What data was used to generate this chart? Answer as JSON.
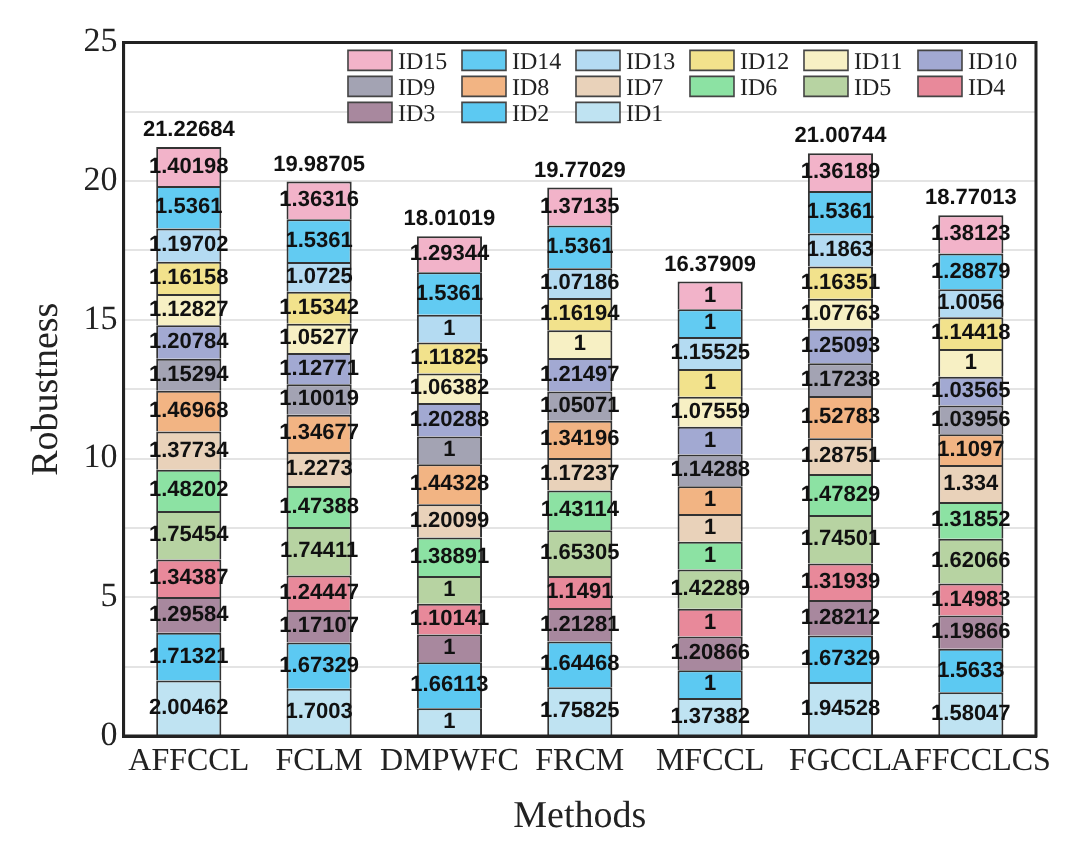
{
  "chart_data": {
    "type": "bar",
    "stacked": true,
    "xlabel": "Methods",
    "ylabel": "Robustness",
    "categories": [
      "AFFCCL",
      "FCLM",
      "DMPWFC",
      "FRCM",
      "MFCCL",
      "FGCCL",
      "AFFCCLCS"
    ],
    "ylim": [
      0,
      25
    ],
    "yticks": [
      0,
      {
        "value": 2.5,
        "label": null
      },
      5,
      {
        "value": 7.5,
        "label": null
      },
      10,
      {
        "value": 12.5,
        "label": null
      },
      15,
      {
        "value": 17.5,
        "label": null
      },
      20,
      {
        "value": 22.5,
        "label": null
      },
      25
    ],
    "grid": "y",
    "legend": "top right",
    "data_labels": true,
    "totals": [
      "21.22684",
      "19.98705",
      "18.01019",
      "19.77029",
      "16.37909",
      "21.00744",
      "18.77013"
    ],
    "series": [
      {
        "name": "ID1",
        "color": "#bfe3f2",
        "values": [
          2.00462,
          1.7003,
          1,
          1.75825,
          1.37382,
          1.94528,
          1.58047
        ]
      },
      {
        "name": "ID2",
        "color": "#5cc9f2",
        "values": [
          1.71321,
          1.67329,
          1.66113,
          1.64468,
          1,
          1.67329,
          1.5633
        ]
      },
      {
        "name": "ID3",
        "color": "#a8889e",
        "values": [
          1.29584,
          1.17107,
          1,
          1.21281,
          1.20866,
          1.28212,
          1.19866
        ]
      },
      {
        "name": "ID4",
        "color": "#e8899a",
        "values": [
          1.34387,
          1.24447,
          1.10141,
          1.1491,
          1,
          1.31939,
          1.14983
        ]
      },
      {
        "name": "ID5",
        "color": "#b7d3a2",
        "values": [
          1.75454,
          1.74411,
          1,
          1.65305,
          1.42289,
          1.74501,
          1.62066
        ]
      },
      {
        "name": "ID6",
        "color": "#8ce2a3",
        "values": [
          1.48202,
          1.47388,
          1.38891,
          1.43114,
          1,
          1.47829,
          1.31852
        ]
      },
      {
        "name": "ID7",
        "color": "#e9d2ba",
        "values": [
          1.37734,
          1.2273,
          1.20099,
          1.17237,
          1,
          1.28751,
          1.334
        ]
      },
      {
        "name": "ID8",
        "color": "#f2b483",
        "values": [
          1.46968,
          1.34677,
          1.44328,
          1.34196,
          1,
          1.52783,
          1.1097
        ]
      },
      {
        "name": "ID9",
        "color": "#a3a3b3",
        "values": [
          1.15294,
          1.10019,
          1,
          1.05071,
          1.14288,
          1.17238,
          1.03956
        ]
      },
      {
        "name": "ID10",
        "color": "#a2a9d2",
        "values": [
          1.20784,
          1.12771,
          1.20288,
          1.21497,
          1,
          1.25093,
          1.03565
        ]
      },
      {
        "name": "ID11",
        "color": "#f7f0c4",
        "values": [
          1.12827,
          1.05277,
          1.06382,
          1,
          1.07559,
          1.07763,
          1
        ]
      },
      {
        "name": "ID12",
        "color": "#f2e28c",
        "values": [
          1.16158,
          1.15342,
          1.11825,
          1.16194,
          1,
          1.16351,
          1.14418
        ]
      },
      {
        "name": "ID13",
        "color": "#b4dbf2",
        "values": [
          1.19702,
          1.0725,
          1,
          1.07186,
          1.15525,
          1.1863,
          1.0056
        ]
      },
      {
        "name": "ID14",
        "color": "#62cbf2",
        "values": [
          1.5361,
          1.5361,
          1.5361,
          1.5361,
          1,
          1.5361,
          1.28879
        ]
      },
      {
        "name": "ID15",
        "color": "#f2b3c9",
        "values": [
          1.40198,
          1.36316,
          1.29344,
          1.37135,
          1,
          1.36189,
          1.38123
        ]
      }
    ]
  }
}
